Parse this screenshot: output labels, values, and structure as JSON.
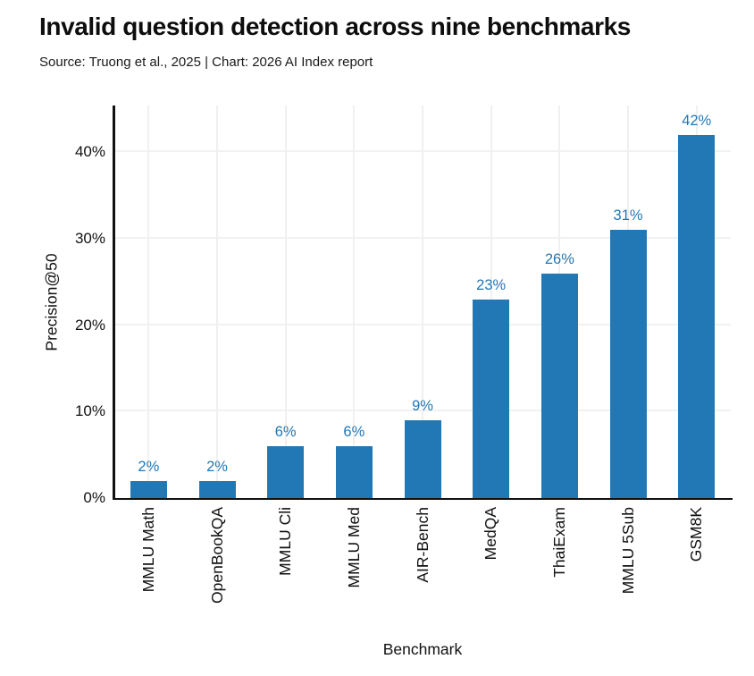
{
  "header": {
    "title": "Invalid question detection across nine benchmarks",
    "source": "Source: Truong et al., 2025 | Chart: 2026 AI Index report"
  },
  "chart_data": {
    "type": "bar",
    "title": "Invalid question detection across nine benchmarks",
    "categories": [
      "MMLU Math",
      "OpenBookQA",
      "MMLU Cli",
      "MMLU Med",
      "AIR-Bench",
      "MedQA",
      "ThaiExam",
      "MMLU 5Sub",
      "GSM8K"
    ],
    "values": [
      2,
      2,
      6,
      6,
      9,
      23,
      26,
      31,
      42
    ],
    "value_labels": [
      "2%",
      "2%",
      "6%",
      "6%",
      "9%",
      "23%",
      "26%",
      "31%",
      "42%"
    ],
    "xlabel": "Benchmark",
    "ylabel": "Precision@50",
    "ylim": [
      0,
      45.4
    ],
    "yticks": [
      0,
      10,
      20,
      30,
      40
    ],
    "ytick_labels": [
      "0%",
      "10%",
      "20%",
      "30%",
      "40%"
    ],
    "grid": true,
    "legend": "none",
    "bar_color": "#2278b5",
    "value_label_color": "#2277b5",
    "axis_color": "#111111",
    "gridline_color": "#f1f1f1"
  }
}
